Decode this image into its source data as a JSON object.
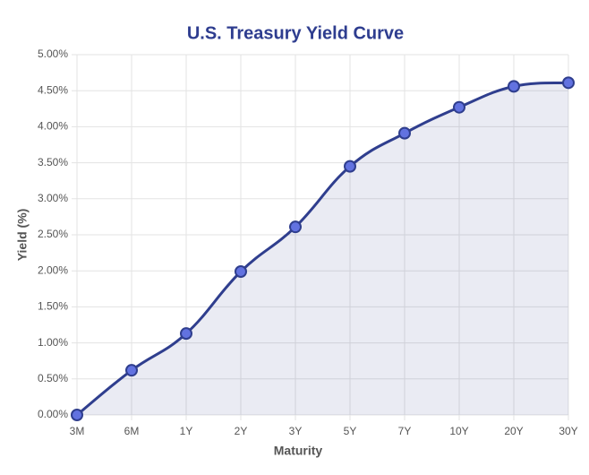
{
  "chart_data": {
    "type": "line",
    "title": "U.S. Treasury Yield Curve",
    "x_label": "Maturity",
    "y_label": "Yield (%)",
    "categories": [
      "3M",
      "6M",
      "1Y",
      "2Y",
      "3Y",
      "5Y",
      "7Y",
      "10Y",
      "20Y",
      "30Y"
    ],
    "series": [
      {
        "name": "Yield",
        "color": "#2f3e8e",
        "values": [
          0,
          0.62,
          1.13,
          1.99,
          2.61,
          3.45,
          3.91,
          4.27,
          4.56,
          4.61
        ]
      }
    ],
    "ylim": [
      0,
      5
    ],
    "yticks": [
      {
        "value": 0,
        "label": "0.00%"
      },
      {
        "value": 0.5,
        "label": "0.50%"
      },
      {
        "value": 1,
        "label": "1.00%"
      },
      {
        "value": 1.5,
        "label": "1.50%"
      },
      {
        "value": 2,
        "label": "2.00%"
      },
      {
        "value": 2.5,
        "label": "2.50%"
      },
      {
        "value": 3,
        "label": "3.00%"
      },
      {
        "value": 3.5,
        "label": "3.50%"
      },
      {
        "value": 4,
        "label": "4.00%"
      },
      {
        "value": 4.5,
        "label": "4.50%"
      },
      {
        "value": 5,
        "label": "5.00%"
      }
    ],
    "grid": true
  }
}
